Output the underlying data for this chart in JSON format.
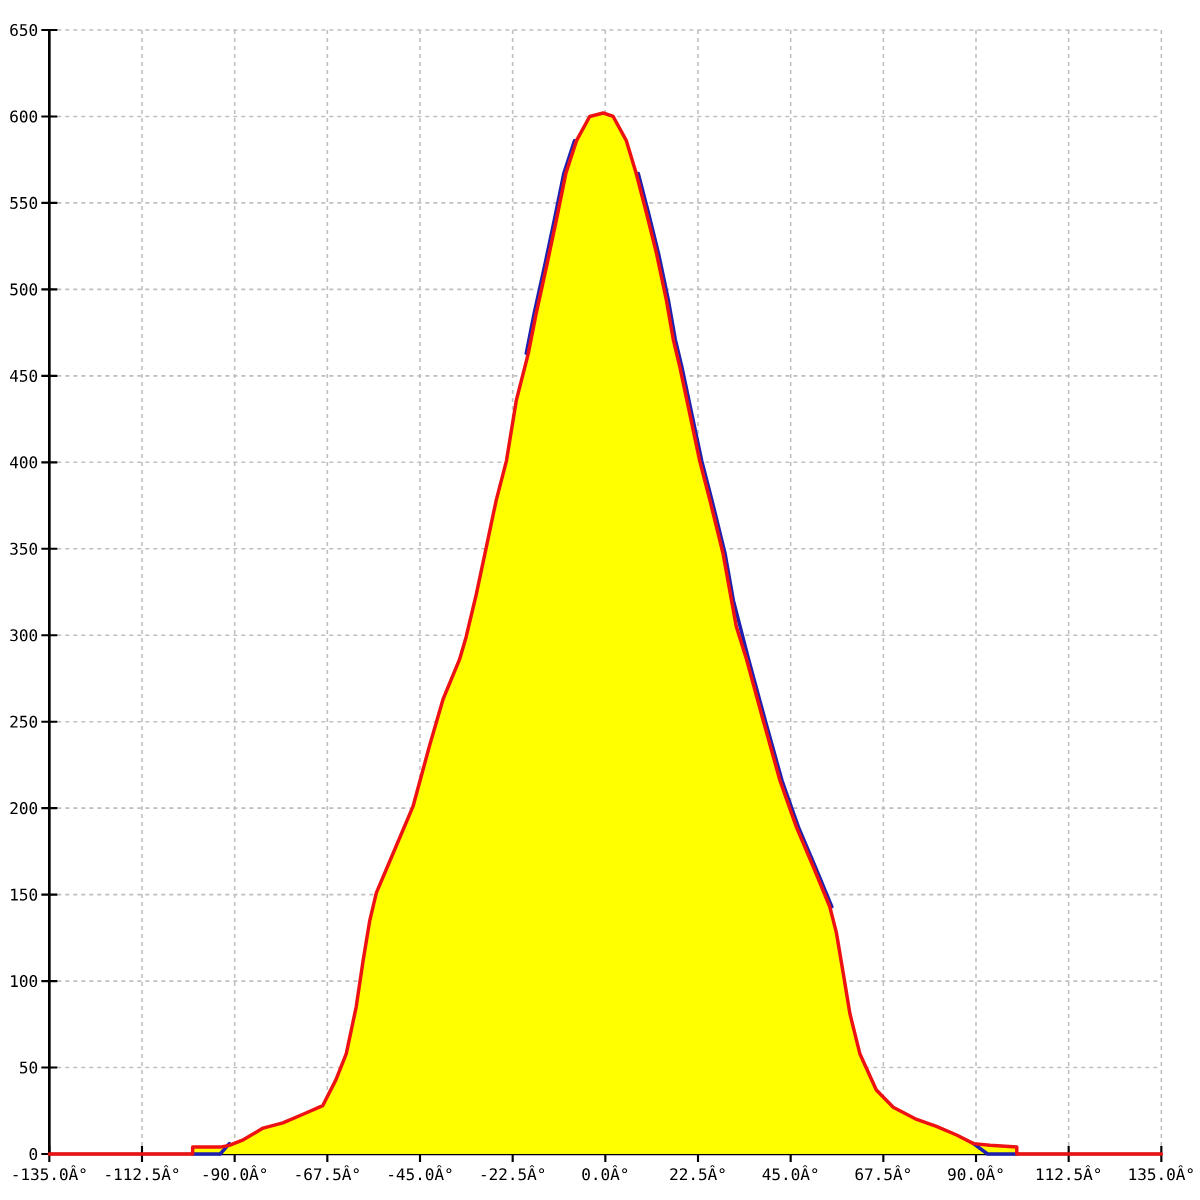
{
  "chart_data": {
    "type": "line",
    "xlim": [
      -135,
      135
    ],
    "ylim": [
      0,
      650
    ],
    "xticks": [
      {
        "value": -135,
        "label": "-135.0Â°"
      },
      {
        "value": -112.5,
        "label": "-112.5Â°"
      },
      {
        "value": -90,
        "label": "-90.0Â°"
      },
      {
        "value": -67.5,
        "label": "-67.5Â°"
      },
      {
        "value": -45,
        "label": "-45.0Â°"
      },
      {
        "value": -22.5,
        "label": "-22.5Â°"
      },
      {
        "value": 0,
        "label": "0.0Â°"
      },
      {
        "value": 22.5,
        "label": "22.5Â°"
      },
      {
        "value": 45,
        "label": "45.0Â°"
      },
      {
        "value": 67.5,
        "label": "67.5Â°"
      },
      {
        "value": 90,
        "label": "90.0Â°"
      },
      {
        "value": 112.5,
        "label": "112.5Â°"
      },
      {
        "value": 135,
        "label": "135.0Â°"
      }
    ],
    "yticks": [
      0,
      50,
      100,
      150,
      200,
      250,
      300,
      350,
      400,
      450,
      500,
      550,
      600,
      650
    ],
    "grid": true,
    "series": [
      {
        "type": "area",
        "color": "#ffff00",
        "x": [
          -100.2,
          -100.2,
          -93.5,
          -91.3,
          -88.1,
          -83.1,
          -78.3,
          -73.4,
          -68.6,
          -65.4,
          -62.9,
          -60.5,
          -58.8,
          -57.2,
          -55.6,
          -50.8,
          -46.7,
          -42.7,
          -39.4,
          -35.4,
          -33.8,
          -31.3,
          -28.9,
          -26.5,
          -24.0,
          -21.6,
          -18.7,
          -16.8,
          -14.3,
          -11.9,
          -9.6,
          -7.0,
          -3.8,
          -0.5,
          1.9,
          5.1,
          7.5,
          10.0,
          12.4,
          14.8,
          16.5,
          18.1,
          20.5,
          22.9,
          25.4,
          28.6,
          31.8,
          34.3,
          38.3,
          42.4,
          46.4,
          50.5,
          54.5,
          56.1,
          57.8,
          59.4,
          61.8,
          65.8,
          69.9,
          75.6,
          80.4,
          85.3,
          89.4,
          93.4,
          99.9,
          99.9
        ],
        "values": [
          0,
          4,
          4,
          5,
          8,
          15,
          18,
          23,
          28,
          43,
          58,
          85,
          112,
          135,
          151,
          178,
          201,
          236,
          263,
          286,
          299,
          324,
          351,
          378,
          401,
          436,
          463,
          486,
          513,
          540,
          567,
          586,
          600,
          602,
          600,
          586,
          567,
          544,
          521,
          494,
          471,
          455,
          428,
          401,
          378,
          347,
          305,
          286,
          251,
          216,
          189,
          166,
          143,
          128,
          104,
          81,
          58,
          37,
          27,
          20,
          16,
          11,
          6,
          5,
          4,
          0
        ]
      },
      {
        "color": "#2020b0",
        "x": [
          -100.2,
          -93.5,
          -91.3,
          -50,
          -19.2,
          -17.3,
          -14.8,
          -12.4,
          -10.1,
          -7.5,
          0,
          8.0,
          10.5,
          12.9,
          15.3,
          17.0,
          18.6,
          21.0,
          23.4,
          25.9,
          29.1,
          31.1,
          34.8,
          38.8,
          42.9,
          46.9,
          51.0,
          55.0,
          70,
          89.4,
          92.8,
          99.9
        ],
        "values": [
          0,
          0,
          6,
          null,
          463,
          486,
          513,
          540,
          567,
          586,
          null,
          567,
          544,
          521,
          494,
          471,
          455,
          428,
          401,
          378,
          347,
          320,
          286,
          251,
          216,
          189,
          166,
          143,
          null,
          6,
          0,
          0
        ]
      },
      {
        "color": "#ee1111",
        "x": [
          -135,
          -100.2,
          -100.2,
          -93.5,
          -91.3,
          -88.1,
          -83.1,
          -78.3,
          -73.4,
          -68.6,
          -65.4,
          -62.9,
          -60.5,
          -58.8,
          -57.2,
          -55.6,
          -50.8,
          -46.7,
          -42.7,
          -39.4,
          -35.4,
          -33.8,
          -31.3,
          -28.9,
          -26.5,
          -24.0,
          -21.6,
          -18.7,
          -16.8,
          -14.3,
          -11.9,
          -9.6,
          -7.0,
          -3.8,
          -0.5,
          1.9,
          5.1,
          7.5,
          10.0,
          12.4,
          14.8,
          16.5,
          18.1,
          20.5,
          22.9,
          25.4,
          28.6,
          31.8,
          34.3,
          38.3,
          42.4,
          46.4,
          50.5,
          54.5,
          56.1,
          57.8,
          59.4,
          61.8,
          65.8,
          69.9,
          75.6,
          80.4,
          85.3,
          89.4,
          93.4,
          99.9,
          99.9,
          135
        ],
        "values": [
          0,
          0,
          4,
          4,
          5,
          8,
          15,
          18,
          23,
          28,
          43,
          58,
          85,
          112,
          135,
          151,
          178,
          201,
          236,
          263,
          286,
          299,
          324,
          351,
          378,
          401,
          436,
          463,
          486,
          513,
          540,
          567,
          586,
          600,
          602,
          600,
          586,
          567,
          544,
          521,
          494,
          471,
          455,
          428,
          401,
          378,
          347,
          305,
          286,
          251,
          216,
          189,
          166,
          143,
          128,
          104,
          81,
          58,
          37,
          27,
          20,
          16,
          11,
          6,
          5,
          4,
          0,
          0
        ]
      }
    ]
  }
}
